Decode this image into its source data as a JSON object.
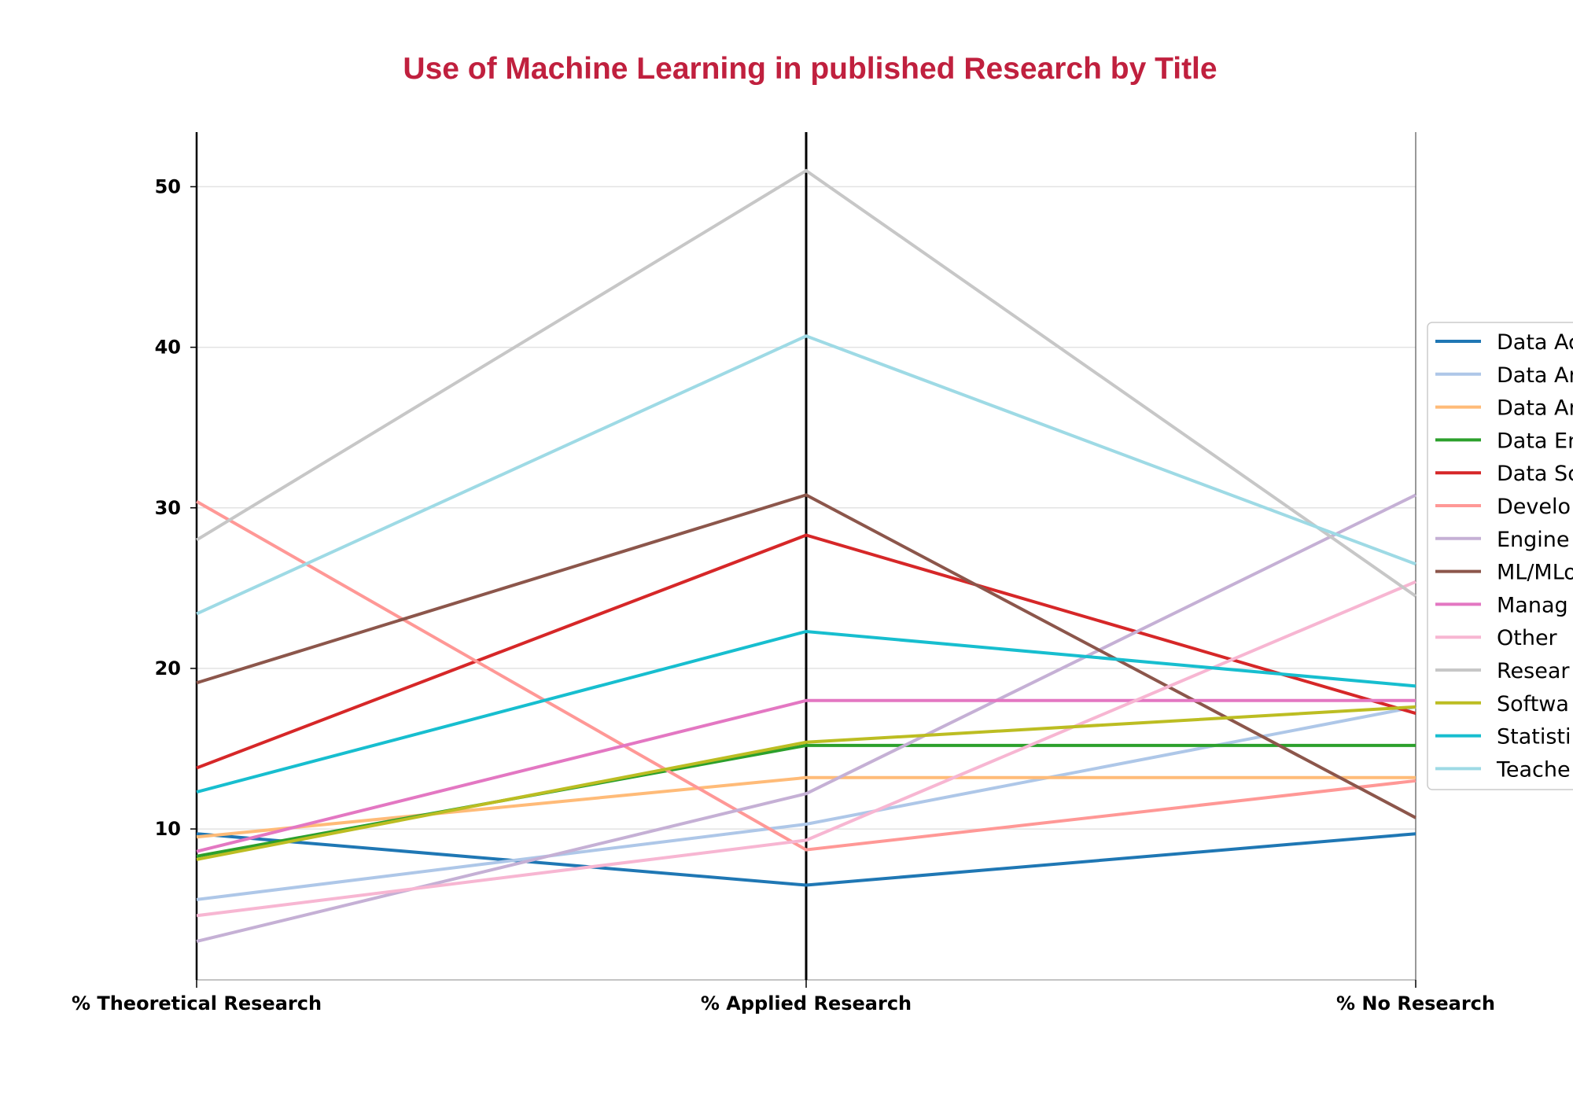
{
  "chart_data": {
    "type": "line",
    "subtype": "parallel-coordinates",
    "title": "Use of Machine Learning in published Research by Title",
    "title_color": "#c0203e",
    "axes": [
      "% Theoretical Research",
      "% Applied Research",
      "% No Research"
    ],
    "y_ticks": [
      "10",
      "20",
      "30",
      "40",
      "50"
    ],
    "ylim": [
      0.6,
      53.4
    ],
    "grid": "horizontal",
    "legend_position": "right",
    "series": [
      {
        "name": "Data Ac",
        "color": "#1f77b4",
        "values": [
          9.7,
          6.5,
          9.7
        ]
      },
      {
        "name": "Data An",
        "color": "#aec7e8",
        "values": [
          5.6,
          10.3,
          17.6
        ]
      },
      {
        "name": "Data An",
        "color": "#ffbb78",
        "values": [
          9.5,
          13.2,
          13.2
        ]
      },
      {
        "name": "Data En",
        "color": "#2ca02c",
        "values": [
          8.3,
          15.2,
          15.2
        ]
      },
      {
        "name": "Data Sc",
        "color": "#d62728",
        "values": [
          13.8,
          28.3,
          17.2
        ]
      },
      {
        "name": "Develo",
        "color": "#ff9896",
        "values": [
          30.4,
          8.7,
          13.0
        ]
      },
      {
        "name": "Engine",
        "color": "#c5b0d5",
        "values": [
          3.0,
          12.2,
          30.8
        ]
      },
      {
        "name": "ML/MLo",
        "color": "#8c564b",
        "values": [
          19.1,
          30.8,
          10.7
        ]
      },
      {
        "name": "Manag",
        "color": "#e377c2",
        "values": [
          8.6,
          18.0,
          18.0
        ]
      },
      {
        "name": "Other",
        "color": "#f7b6d2",
        "values": [
          4.6,
          9.3,
          25.4
        ]
      },
      {
        "name": "Resear",
        "color": "#c7c7c7",
        "values": [
          28.0,
          51.0,
          24.5
        ]
      },
      {
        "name": "Softwa",
        "color": "#bcbd22",
        "values": [
          8.1,
          15.4,
          17.6
        ]
      },
      {
        "name": "Statisti",
        "color": "#17becf",
        "values": [
          12.3,
          22.3,
          18.9
        ]
      },
      {
        "name": "Teache",
        "color": "#9edae5",
        "values": [
          23.4,
          40.7,
          26.5
        ]
      }
    ]
  }
}
